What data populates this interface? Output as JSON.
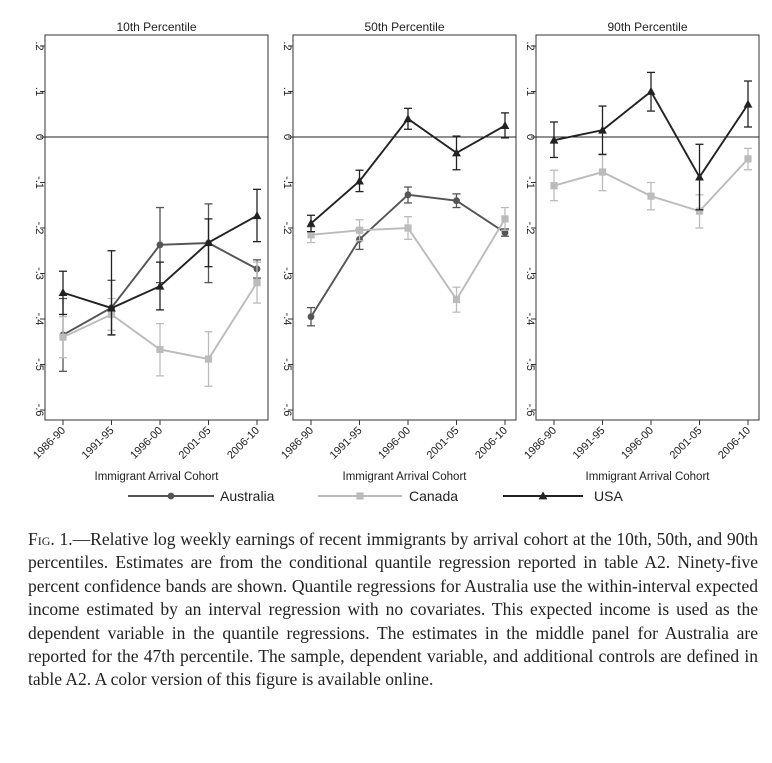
{
  "chart_data": [
    {
      "type": "line",
      "title": "10th Percentile",
      "xlabel": "Immigrant Arrival Cohort",
      "ylabel": "",
      "categories": [
        "1986-90",
        "1991-95",
        "1996-00",
        "2001-05",
        "2006-10"
      ],
      "ylim": [
        -0.6,
        0.2
      ],
      "yticks": [
        ".2",
        ".1",
        "0",
        "-.1",
        "-.2",
        "-.3",
        "-.4",
        "-.5",
        "-.6"
      ],
      "series": [
        {
          "name": "Australia",
          "values": [
            -0.435,
            -0.375,
            -0.237,
            -0.233,
            -0.29
          ],
          "ci_low": [
            -0.515,
            -0.435,
            -0.32,
            -0.32,
            -0.31
          ],
          "ci_high": [
            -0.355,
            -0.315,
            -0.155,
            -0.147,
            -0.27
          ]
        },
        {
          "name": "Canada",
          "values": [
            -0.44,
            -0.39,
            -0.467,
            -0.488,
            -0.32
          ],
          "ci_low": [
            -0.485,
            -0.425,
            -0.525,
            -0.548,
            -0.365
          ],
          "ci_high": [
            -0.395,
            -0.355,
            -0.41,
            -0.428,
            -0.275
          ]
        },
        {
          "name": "USA",
          "values": [
            -0.342,
            -0.376,
            -0.328,
            -0.232,
            -0.173
          ],
          "ci_low": [
            -0.39,
            -0.435,
            -0.38,
            -0.285,
            -0.23
          ],
          "ci_high": [
            -0.295,
            -0.25,
            -0.275,
            -0.18,
            -0.115
          ]
        }
      ]
    },
    {
      "type": "line",
      "title": "50th Percentile",
      "xlabel": "Immigrant Arrival Cohort",
      "ylabel": "",
      "categories": [
        "1986-90",
        "1991-95",
        "1996-00",
        "2001-05",
        "2006-10"
      ],
      "ylim": [
        -0.6,
        0.2
      ],
      "yticks": [
        ".2",
        ".1",
        "0",
        "-.1",
        "-.2",
        "-.3",
        "-.4",
        "-.5",
        "-.6"
      ],
      "series": [
        {
          "name": "Australia",
          "values": [
            -0.395,
            -0.225,
            -0.127,
            -0.14,
            -0.21
          ],
          "ci_low": [
            -0.415,
            -0.247,
            -0.145,
            -0.155,
            -0.218
          ],
          "ci_high": [
            -0.375,
            -0.203,
            -0.11,
            -0.125,
            -0.202
          ]
        },
        {
          "name": "Canada",
          "values": [
            -0.215,
            -0.205,
            -0.2,
            -0.357,
            -0.18
          ],
          "ci_low": [
            -0.232,
            -0.228,
            -0.225,
            -0.385,
            -0.205
          ],
          "ci_high": [
            -0.198,
            -0.182,
            -0.175,
            -0.33,
            -0.155
          ]
        },
        {
          "name": "USA",
          "values": [
            -0.19,
            -0.097,
            0.04,
            -0.035,
            0.025
          ],
          "ci_low": [
            -0.208,
            -0.12,
            0.017,
            -0.072,
            -0.002
          ],
          "ci_high": [
            -0.172,
            -0.073,
            0.063,
            0.002,
            0.053
          ]
        }
      ]
    },
    {
      "type": "line",
      "title": "90th Percentile",
      "xlabel": "Immigrant Arrival Cohort",
      "ylabel": "",
      "categories": [
        "1986-90",
        "1991-95",
        "1996-00",
        "2001-05",
        "2006-10"
      ],
      "ylim": [
        -0.6,
        0.2
      ],
      "yticks": [
        ".2",
        ".1",
        "0",
        "-.1",
        "-.2",
        "-.3",
        "-.4",
        "-.5",
        "-.6"
      ],
      "series": [
        {
          "name": "Canada",
          "values": [
            -0.107,
            -0.077,
            -0.13,
            -0.163,
            -0.048
          ],
          "ci_low": [
            -0.14,
            -0.118,
            -0.16,
            -0.2,
            -0.072
          ],
          "ci_high": [
            -0.073,
            -0.04,
            -0.1,
            -0.127,
            -0.025
          ]
        },
        {
          "name": "USA",
          "values": [
            -0.007,
            0.015,
            0.1,
            -0.088,
            0.072
          ],
          "ci_low": [
            -0.045,
            -0.038,
            0.057,
            -0.16,
            0.022
          ],
          "ci_high": [
            0.033,
            0.068,
            0.142,
            -0.016,
            0.123
          ]
        }
      ]
    }
  ],
  "legend": [
    {
      "name": "Australia",
      "marker": "circle",
      "color": "#555555"
    },
    {
      "name": "Canada",
      "marker": "square",
      "color": "#bbbbbb"
    },
    {
      "name": "USA",
      "marker": "triangle",
      "color": "#222222"
    }
  ],
  "series_colors": {
    "Australia": "#555555",
    "Canada": "#bbbbbb",
    "USA": "#222222"
  },
  "caption": {
    "label": "Fig. 1.",
    "text": "—Relative log weekly earnings of recent immigrants by arrival cohort at the 10th, 50th, and 90th percentiles. Estimates are from the conditional quantile regression reported in table A2. Ninety-five percent confidence bands are shown. Quantile regressions for Australia use the within-interval expected income estimated by an interval regression with no covariates. This expected income is used as the dependent variable in the quantile regressions. The estimates in the middle panel for Australia are reported for the 47th percentile. The sample, dependent variable, and additional controls are defined in table A2. A color version of this figure is available online."
  }
}
